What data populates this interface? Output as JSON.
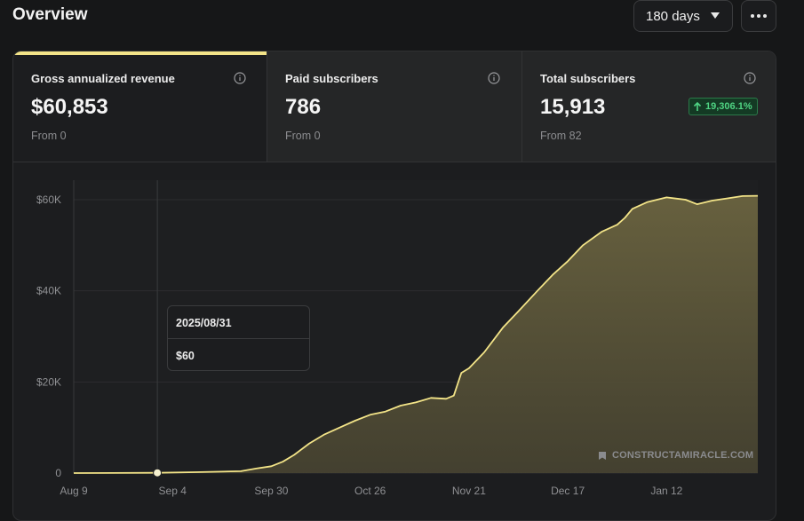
{
  "header": {
    "title": "Overview",
    "range_select": {
      "value": "180 days"
    },
    "more_label": "More options"
  },
  "stats": [
    {
      "label": "Gross annualized revenue",
      "value": "$60,853",
      "from": "From 0",
      "active": true
    },
    {
      "label": "Paid subscribers",
      "value": "786",
      "from": "From 0",
      "active": false
    },
    {
      "label": "Total subscribers",
      "value": "15,913",
      "from": "From 82",
      "active": false,
      "badge": "19,306.1%"
    }
  ],
  "colors": {
    "accent": "#f3e488",
    "badge_text": "#4fd483",
    "badge_bg": "#143a24"
  },
  "watermark": "CONSTRUCTAMIRACLE.COM",
  "tooltip": {
    "date": "2025/08/31",
    "value": "$60"
  },
  "chart_data": {
    "type": "area",
    "ylim": [
      0,
      60000
    ],
    "y_ticks": [
      {
        "value": 0,
        "label": "0"
      },
      {
        "value": 20000,
        "label": "$20K"
      },
      {
        "value": 40000,
        "label": "$40K"
      },
      {
        "value": 60000,
        "label": "$60K"
      }
    ],
    "x_ticks": [
      {
        "date": "2025-08-09",
        "label": "Aug 9"
      },
      {
        "date": "2025-09-04",
        "label": "Sep 4"
      },
      {
        "date": "2025-09-30",
        "label": "Sep 30"
      },
      {
        "date": "2025-10-26",
        "label": "Oct 26"
      },
      {
        "date": "2025-11-21",
        "label": "Nov 21"
      },
      {
        "date": "2025-12-17",
        "label": "Dec 17"
      },
      {
        "date": "2026-01-12",
        "label": "Jan 12"
      }
    ],
    "xlim": [
      "2025-08-09",
      "2026-02-05"
    ],
    "grid": true,
    "highlight": {
      "date": "2025-08-31",
      "value": 60
    },
    "series": [
      {
        "points": [
          [
            "2025-08-09",
            0
          ],
          [
            "2025-08-31",
            60
          ],
          [
            "2025-09-10",
            200
          ],
          [
            "2025-09-22",
            400
          ],
          [
            "2025-09-26",
            1000
          ],
          [
            "2025-09-30",
            1500
          ],
          [
            "2025-10-03",
            2500
          ],
          [
            "2025-10-06",
            4000
          ],
          [
            "2025-10-10",
            6500
          ],
          [
            "2025-10-14",
            8500
          ],
          [
            "2025-10-18",
            10000
          ],
          [
            "2025-10-22",
            11500
          ],
          [
            "2025-10-26",
            12800
          ],
          [
            "2025-10-30",
            13500
          ],
          [
            "2025-11-03",
            14800
          ],
          [
            "2025-11-07",
            15500
          ],
          [
            "2025-11-11",
            16500
          ],
          [
            "2025-11-15",
            16300
          ],
          [
            "2025-11-17",
            17000
          ],
          [
            "2025-11-19",
            22000
          ],
          [
            "2025-11-21",
            23000
          ],
          [
            "2025-11-25",
            26500
          ],
          [
            "2025-11-30",
            32000
          ],
          [
            "2025-12-04",
            35500
          ],
          [
            "2025-12-09",
            40000
          ],
          [
            "2025-12-13",
            43500
          ],
          [
            "2025-12-17",
            46500
          ],
          [
            "2025-12-21",
            50000
          ],
          [
            "2025-12-26",
            53000
          ],
          [
            "2025-12-30",
            54500
          ],
          [
            "2026-01-01",
            56000
          ],
          [
            "2026-01-03",
            58000
          ],
          [
            "2026-01-07",
            59500
          ],
          [
            "2026-01-12",
            60500
          ],
          [
            "2026-01-17",
            60000
          ],
          [
            "2026-01-20",
            59000
          ],
          [
            "2026-01-24",
            59800
          ],
          [
            "2026-01-28",
            60300
          ],
          [
            "2026-02-01",
            60800
          ],
          [
            "2026-02-05",
            60853
          ]
        ]
      }
    ]
  }
}
